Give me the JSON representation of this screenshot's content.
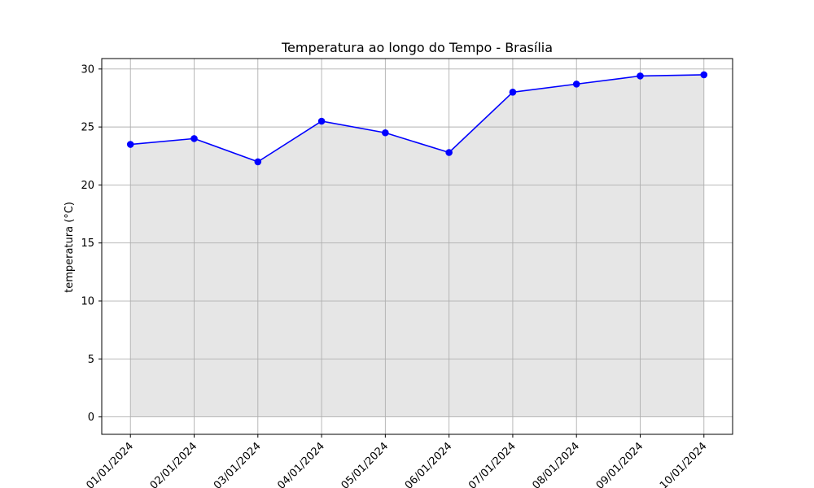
{
  "chart_data": {
    "type": "area",
    "title": "Temperatura ao longo do Tempo - Brasília",
    "xlabel": "",
    "ylabel": "temperatura (°C)",
    "categories": [
      "01/01/2024",
      "02/01/2024",
      "03/01/2024",
      "04/01/2024",
      "05/01/2024",
      "06/01/2024",
      "07/01/2024",
      "08/01/2024",
      "09/01/2024",
      "10/01/2024"
    ],
    "series": [
      {
        "values": [
          23.5,
          24.0,
          22.0,
          25.5,
          24.5,
          22.8,
          28.0,
          28.7,
          29.4,
          29.5
        ],
        "color": "#0000ff"
      }
    ],
    "fill_color": "#e6e6e6",
    "ylim": [
      -1.5,
      30.9
    ],
    "yticks": [
      0,
      5,
      10,
      15,
      20,
      25,
      30
    ],
    "grid": true,
    "legend": "none"
  }
}
